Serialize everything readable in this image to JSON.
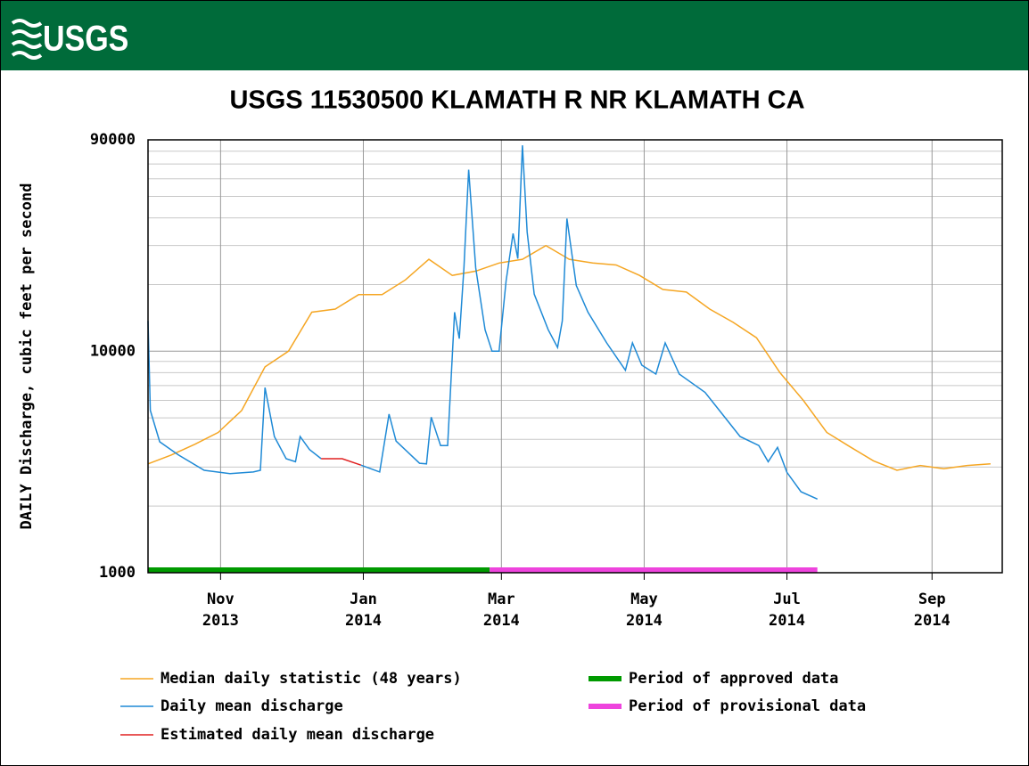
{
  "header": {
    "logo": "USGS"
  },
  "chart_data": {
    "type": "line",
    "title": "USGS 11530500 KLAMATH R NR KLAMATH CA",
    "ylabel": "DAILY Discharge, cubic feet per second",
    "log_y": true,
    "grid": true,
    "xlim": [
      "2013-10-01",
      "2014-10-01"
    ],
    "ylim": [
      1000,
      90000
    ],
    "yticks": [
      1000,
      10000,
      90000
    ],
    "yticks_minor": [
      2000,
      3000,
      4000,
      5000,
      6000,
      7000,
      8000,
      9000,
      20000,
      30000,
      40000,
      50000,
      60000,
      70000,
      80000
    ],
    "xticks": [
      {
        "value": "2013-11-01",
        "label": [
          "Nov",
          "2013"
        ]
      },
      {
        "value": "2014-01-01",
        "label": [
          "Jan",
          "2014"
        ]
      },
      {
        "value": "2014-03-01",
        "label": [
          "Mar",
          "2014"
        ]
      },
      {
        "value": "2014-05-01",
        "label": [
          "May",
          "2014"
        ]
      },
      {
        "value": "2014-07-01",
        "label": [
          "Jul",
          "2014"
        ]
      },
      {
        "value": "2014-09-01",
        "label": [
          "Sep",
          "2014"
        ]
      }
    ],
    "series": [
      {
        "name": "Median daily statistic (48 years)",
        "color": "#f5a623",
        "x": [
          "2013-10-01",
          "2013-10-11",
          "2013-10-21",
          "2013-10-31",
          "2013-11-10",
          "2013-11-20",
          "2013-11-30",
          "2013-12-10",
          "2013-12-20",
          "2013-12-30",
          "2014-01-09",
          "2014-01-19",
          "2014-01-29",
          "2014-02-08",
          "2014-02-18",
          "2014-02-28",
          "2014-03-10",
          "2014-03-20",
          "2014-03-30",
          "2014-04-09",
          "2014-04-19",
          "2014-04-29",
          "2014-05-09",
          "2014-05-19",
          "2014-05-29",
          "2014-06-08",
          "2014-06-18",
          "2014-06-28",
          "2014-07-08",
          "2014-07-18",
          "2014-07-28",
          "2014-08-07",
          "2014-08-17",
          "2014-08-27",
          "2014-09-06",
          "2014-09-16",
          "2014-09-26"
        ],
        "values": [
          3100,
          3400,
          3800,
          4300,
          5400,
          8500,
          10000,
          15000,
          15500,
          18000,
          18000,
          21000,
          26000,
          22000,
          23000,
          25000,
          26000,
          30000,
          26000,
          25000,
          24500,
          22000,
          19000,
          18500,
          15500,
          13500,
          11500,
          8000,
          6000,
          4300,
          3700,
          3200,
          2900,
          3050,
          2950,
          3050,
          3100
        ]
      },
      {
        "name": "Daily mean discharge",
        "color": "#1f8ad6",
        "x": [
          "2013-10-01",
          "2013-10-02",
          "2013-10-06",
          "2013-10-14",
          "2013-10-25",
          "2013-11-05",
          "2013-11-15",
          "2013-11-18",
          "2013-11-20",
          "2013-11-24",
          "2013-11-29",
          "2013-12-03",
          "2013-12-05",
          "2013-12-09",
          "2013-12-14",
          "2013-12-23",
          "2013-12-31",
          "2014-01-08",
          "2014-01-12",
          "2014-01-15",
          "2014-01-25",
          "2014-01-28",
          "2014-01-30",
          "2014-02-03",
          "2014-02-06",
          "2014-02-09",
          "2014-02-11",
          "2014-02-13",
          "2014-02-15",
          "2014-02-18",
          "2014-02-22",
          "2014-02-25",
          "2014-02-28",
          "2014-03-03",
          "2014-03-06",
          "2014-03-08",
          "2014-03-10",
          "2014-03-12",
          "2014-03-15",
          "2014-03-21",
          "2014-03-25",
          "2014-03-27",
          "2014-03-29",
          "2014-04-02",
          "2014-04-07",
          "2014-04-15",
          "2014-04-23",
          "2014-04-26",
          "2014-04-30",
          "2014-05-06",
          "2014-05-10",
          "2014-05-16",
          "2014-05-27",
          "2014-06-04",
          "2014-06-11",
          "2014-06-19",
          "2014-06-23",
          "2014-06-27",
          "2014-07-01",
          "2014-07-07",
          "2014-07-14"
        ],
        "values": [
          13700,
          5400,
          3900,
          3400,
          2900,
          2800,
          2850,
          2900,
          6850,
          4120,
          3270,
          3170,
          4120,
          3600,
          3270,
          null,
          3060,
          2850,
          5200,
          3930,
          3120,
          3100,
          5040,
          3750,
          3750,
          15000,
          11400,
          23800,
          66000,
          23800,
          12500,
          10000,
          10000,
          20800,
          34000,
          26200,
          85000,
          34500,
          18100,
          12500,
          10400,
          13700,
          39700,
          19800,
          15000,
          10900,
          8200,
          10900,
          8650,
          7880,
          10900,
          7880,
          6520,
          5100,
          4120,
          3750,
          3170,
          3680,
          2840,
          2320,
          2150
        ]
      },
      {
        "name": "Estimated daily mean discharge",
        "color": "#e02020",
        "x": [
          "2013-12-14",
          "2013-12-23",
          "2013-12-31"
        ],
        "values": [
          3270,
          3270,
          3060
        ]
      }
    ],
    "periods": [
      {
        "name": "Period of approved data",
        "color": "#009a00",
        "start": "2013-10-01",
        "end": "2014-02-24"
      },
      {
        "name": "Period of provisional data",
        "color": "#ee44dd",
        "start": "2014-02-24",
        "end": "2014-07-14"
      }
    ]
  }
}
